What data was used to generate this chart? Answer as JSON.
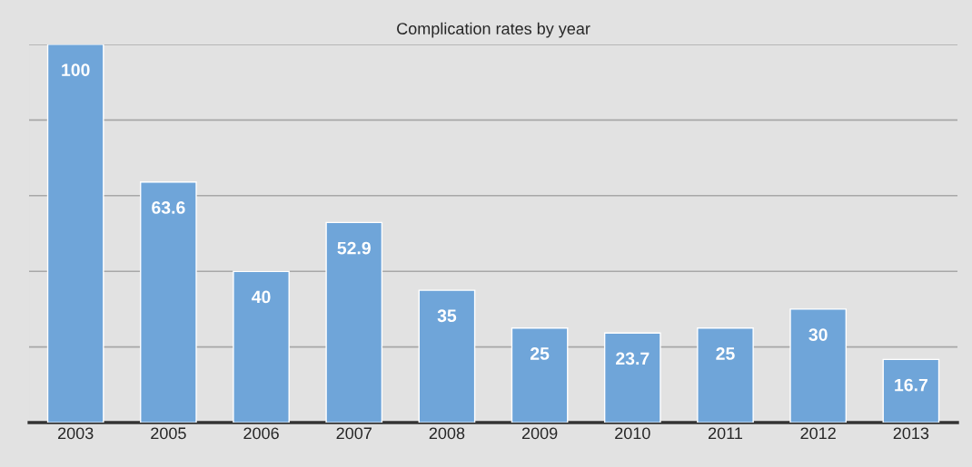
{
  "chart_data": {
    "type": "bar",
    "title": "Complication rates by year",
    "categories": [
      "2003",
      "2005",
      "2006",
      "2007",
      "2008",
      "2009",
      "2010",
      "2011",
      "2012",
      "2013"
    ],
    "values": [
      100,
      63.6,
      40,
      52.9,
      35,
      25,
      23.7,
      25,
      30,
      16.7
    ],
    "color": "#6fa5d9",
    "ylim": [
      0,
      100
    ],
    "yticks": [
      {
        "value": 0,
        "label": null
      },
      {
        "value": 20,
        "label": null
      },
      {
        "value": 40,
        "label": null
      },
      {
        "value": 60,
        "label": null
      },
      {
        "value": 80,
        "label": null
      },
      {
        "value": 100,
        "label": null
      }
    ],
    "grid": "y",
    "data_labels": true,
    "tick_labels": "x"
  }
}
